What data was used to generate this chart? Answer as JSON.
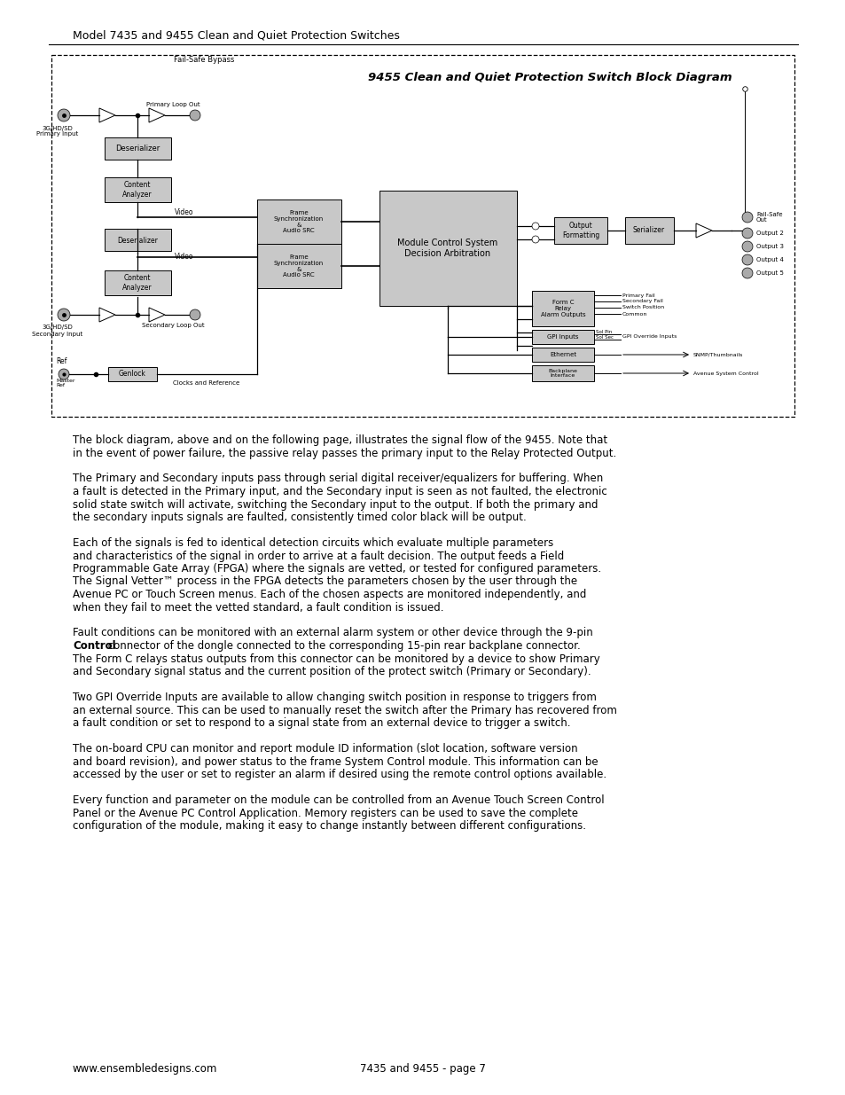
{
  "title_header": "Model 7435 and 9455 Clean and Quiet Protection Switches",
  "diagram_title": "9455 Clean and Quiet Protection Switch Block Diagram",
  "failsafe_label": "Fail-Safe Bypass",
  "page_footer_left": "www.ensembledesigns.com",
  "page_footer_center": "7435 and 9455 - page 7",
  "para1_lines": [
    "The block diagram, above and on the following page, illustrates the signal flow of the 9455. Note that",
    "in the event of power failure, the passive relay passes the primary input to the Relay Protected Output."
  ],
  "para2_lines": [
    "The Primary and Secondary inputs pass through serial digital receiver/equalizers for buffering. When",
    "a fault is detected in the Primary input, and the Secondary input is seen as not faulted, the electronic",
    "solid state switch will activate, switching the Secondary input to the output. If both the primary and",
    "the secondary inputs signals are faulted, consistently timed color black will be output."
  ],
  "para3_lines": [
    "Each of the signals is fed to identical detection circuits which evaluate multiple parameters",
    "and characteristics of the signal in order to arrive at a fault decision. The output feeds a Field",
    "Programmable Gate Array (FPGA) where the signals are vetted, or tested for configured parameters.",
    "The Signal Vetter™ process in the FPGA detects the parameters chosen by the user through the",
    "Avenue PC or Touch Screen menus. Each of the chosen aspects are monitored independently, and",
    "when they fail to meet the vetted standard, a fault condition is issued."
  ],
  "para4_line1": "Fault conditions can be monitored with an external alarm system or other device through the 9-pin",
  "para4_line2_before": "",
  "para4_line2_bold": "Control",
  "para4_line2_after": " connector of the dongle connected to the corresponding 15-pin rear backplane connector.",
  "para4_lines_rest": [
    "The Form C relays status outputs from this connector can be monitored by a device to show Primary",
    "and Secondary signal status and the current position of the protect switch (Primary or Secondary)."
  ],
  "para5_lines": [
    "Two GPI Override Inputs are available to allow changing switch position in response to triggers from",
    "an external source. This can be used to manually reset the switch after the Primary has recovered from",
    "a fault condition or set to respond to a signal state from an external device to trigger a switch."
  ],
  "para6_lines": [
    "The on-board CPU can monitor and report module ID information (slot location, software version",
    "and board revision), and power status to the frame System Control module. This information can be",
    "accessed by the user or set to register an alarm if desired using the remote control options available."
  ],
  "para7_lines": [
    "Every function and parameter on the module can be controlled from an Avenue Touch Screen Control",
    "Panel or the Avenue PC Control Application. Memory registers can be used to save the complete",
    "configuration of the module, making it easy to change instantly between different configurations."
  ],
  "bg_color": "#ffffff",
  "box_fill": "#c8c8c8",
  "box_edge": "#000000",
  "text_color": "#000000"
}
